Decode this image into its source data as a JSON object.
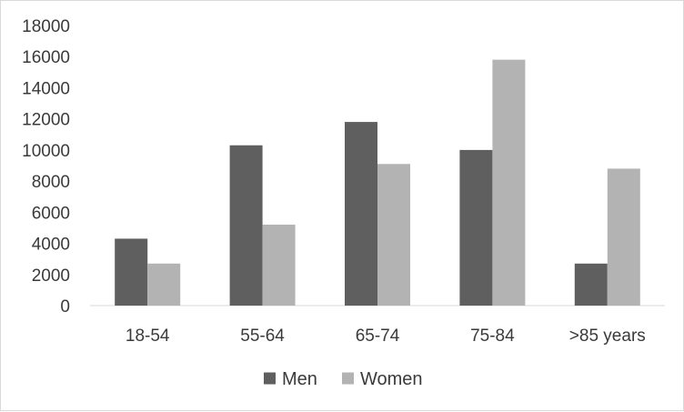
{
  "chart_data": {
    "type": "bar",
    "categories": [
      "18-54",
      "55-64",
      "65-74",
      "75-84",
      ">85 years"
    ],
    "series": [
      {
        "name": "Men",
        "values": [
          4300,
          10300,
          11800,
          10000,
          2700
        ],
        "color": "#5f5f5f"
      },
      {
        "name": "Women",
        "values": [
          2700,
          5200,
          9100,
          15800,
          8800
        ],
        "color": "#b3b3b3"
      }
    ],
    "yticks": [
      "0",
      "2000",
      "4000",
      "6000",
      "8000",
      "10000",
      "12000",
      "14000",
      "16000",
      "18000"
    ],
    "ylim": [
      0,
      18000
    ],
    "grid": false,
    "legend_position": "bottom"
  }
}
